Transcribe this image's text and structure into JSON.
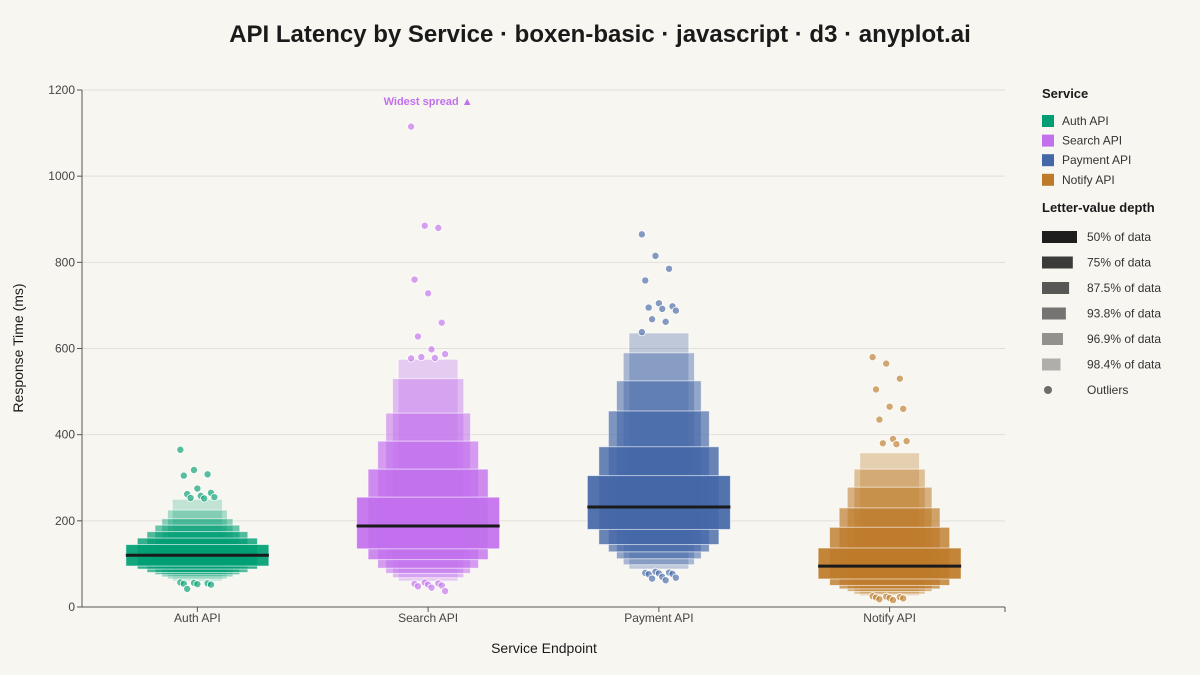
{
  "chart_data": {
    "type": "boxen",
    "title": "API Latency by Service · boxen-basic · javascript · d3 · anyplot.ai",
    "xlabel": "Service Endpoint",
    "ylabel": "Response Time (ms)",
    "ylim": [
      0,
      1200
    ],
    "yticks": [
      0,
      200,
      400,
      600,
      800,
      1000,
      1200
    ],
    "grid": true,
    "legend_placement": "right",
    "annotation": {
      "text": "Widest spread ▲",
      "series": "Search API",
      "color": "#c270ee"
    },
    "depth_labels": [
      "50% of data",
      "75% of data",
      "87.5% of data",
      "93.8% of data",
      "96.9% of data",
      "98.4% of data"
    ],
    "series": [
      {
        "name": "Auth API",
        "color": "#009e73",
        "median": 120,
        "boxes": [
          [
            95,
            145
          ],
          [
            88,
            160
          ],
          [
            80,
            175
          ],
          [
            75,
            190
          ],
          [
            70,
            205
          ],
          [
            65,
            225
          ],
          [
            60,
            250
          ]
        ],
        "outliers": [
          365,
          318,
          308,
          305,
          275,
          265,
          262,
          258,
          255,
          253,
          252,
          57,
          56,
          55,
          54,
          53,
          52,
          42
        ]
      },
      {
        "name": "Search API",
        "color": "#c270ee",
        "median": 188,
        "boxes": [
          [
            135,
            255
          ],
          [
            110,
            320
          ],
          [
            90,
            385
          ],
          [
            78,
            450
          ],
          [
            68,
            530
          ],
          [
            60,
            575
          ]
        ],
        "outliers": [
          1115,
          885,
          880,
          760,
          728,
          660,
          628,
          598,
          587,
          580,
          578,
          577,
          57,
          55,
          54,
          52,
          50,
          48,
          45,
          37
        ]
      },
      {
        "name": "Payment API",
        "color": "#4467a8",
        "median": 232,
        "boxes": [
          [
            180,
            305
          ],
          [
            145,
            372
          ],
          [
            128,
            455
          ],
          [
            112,
            525
          ],
          [
            98,
            590
          ],
          [
            88,
            636
          ]
        ],
        "outliers": [
          865,
          815,
          785,
          758,
          705,
          698,
          695,
          692,
          688,
          668,
          662,
          638,
          82,
          80,
          79,
          78,
          77,
          76,
          70,
          68,
          66,
          62
        ]
      },
      {
        "name": "Notify API",
        "color": "#bd7b2a",
        "median": 95,
        "boxes": [
          [
            65,
            137
          ],
          [
            50,
            185
          ],
          [
            42,
            230
          ],
          [
            36,
            278
          ],
          [
            30,
            320
          ],
          [
            26,
            358
          ]
        ],
        "outliers": [
          580,
          565,
          530,
          505,
          465,
          460,
          435,
          390,
          385,
          380,
          378,
          25,
          24,
          23,
          22,
          21,
          20,
          18,
          16
        ]
      }
    ]
  },
  "legend": {
    "service_title": "Service",
    "depth_title": "Letter-value depth",
    "outliers_label": "Outliers"
  }
}
